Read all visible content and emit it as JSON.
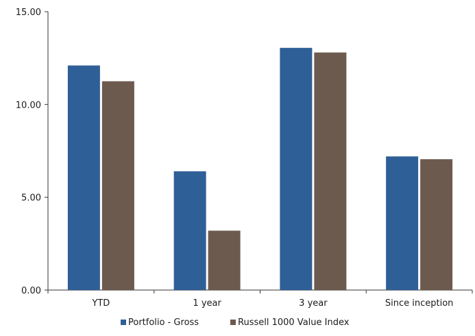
{
  "chart_data": {
    "type": "bar",
    "categories": [
      "YTD",
      "1 year",
      "3 year",
      "Since inception"
    ],
    "series": [
      {
        "name": "Portfolio - Gross",
        "color": "#2f5f97",
        "values": [
          12.1,
          6.4,
          13.05,
          7.2
        ]
      },
      {
        "name": "Russell 1000 Value Index",
        "color": "#6d5a4e",
        "values": [
          11.25,
          3.2,
          12.8,
          7.05
        ]
      }
    ],
    "yticks": [
      "0.00",
      "5.00",
      "10.00",
      "15.00"
    ],
    "ylim": [
      0,
      15
    ],
    "grid": false,
    "legend_position": "bottom",
    "title": "",
    "xlabel": "",
    "ylabel": ""
  }
}
